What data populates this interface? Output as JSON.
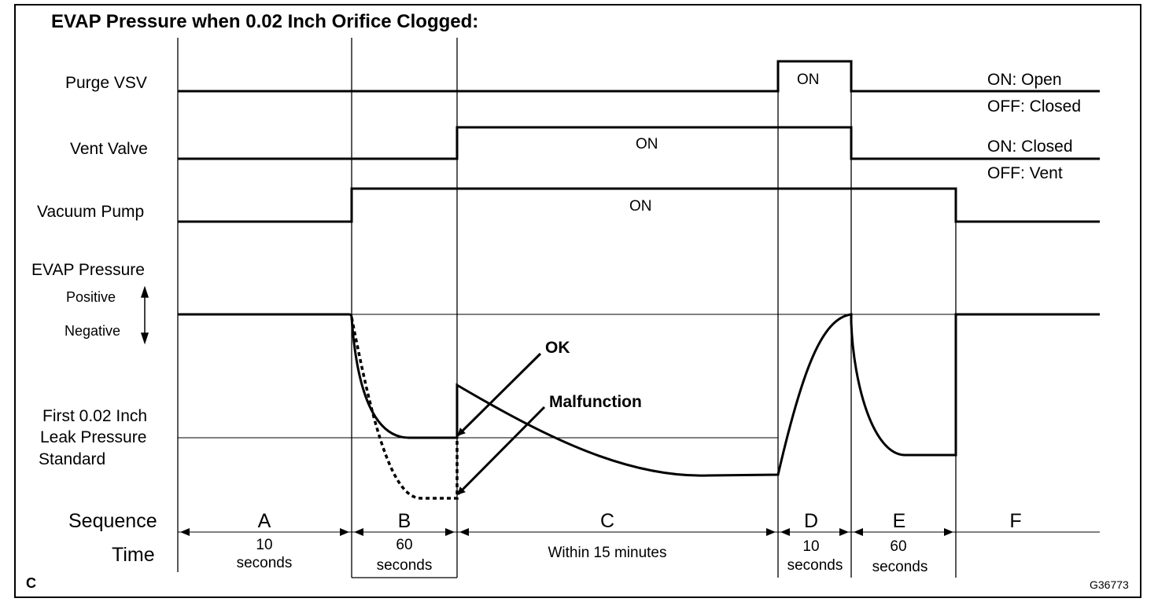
{
  "title": "EVAP Pressure when 0.02 Inch Orifice Clogged:",
  "signals": {
    "purge_vsv": {
      "label": "Purge VSV",
      "on_text": "ON",
      "legend_on": "ON: Open",
      "legend_off": "OFF: Closed"
    },
    "vent_valve": {
      "label": "Vent Valve",
      "on_text": "ON",
      "legend_on": "ON: Closed",
      "legend_off": "OFF: Vent"
    },
    "vacuum_pump": {
      "label": "Vacuum Pump",
      "on_text": "ON"
    }
  },
  "evap_pressure": {
    "label": "EVAP Pressure",
    "positive": "Positive",
    "negative": "Negative",
    "standard_line_1": "First 0.02 Inch",
    "standard_line_2": "Leak Pressure",
    "standard_line_3": "Standard",
    "ok_label": "OK",
    "malfunction_label": "Malfunction"
  },
  "sequence_label": "Sequence",
  "time_label": "Time",
  "phases": [
    {
      "letter": "A",
      "time_1": "10",
      "time_2": "seconds"
    },
    {
      "letter": "B",
      "time_1": "60",
      "time_2": "seconds"
    },
    {
      "letter": "C",
      "time_1": "Within 15 minutes",
      "time_2": ""
    },
    {
      "letter": "D",
      "time_1": "10",
      "time_2": "seconds"
    },
    {
      "letter": "E",
      "time_1": "60",
      "time_2": "seconds"
    },
    {
      "letter": "F",
      "time_1": "",
      "time_2": ""
    }
  ],
  "corner_mark": "C",
  "figure_id": "G36773"
}
